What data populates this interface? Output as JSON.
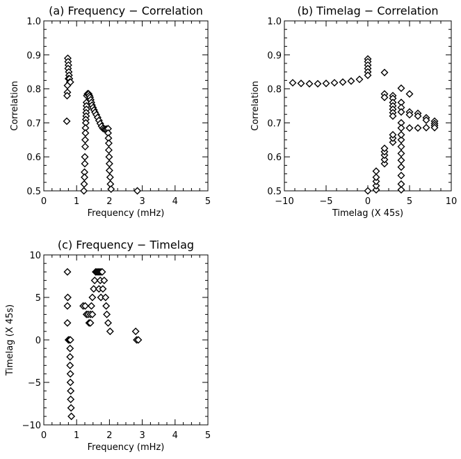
{
  "chart_data": [
    {
      "type": "scatter",
      "title": "(a) Frequency − Correlation",
      "xlabel": "Frequency (mHz)",
      "ylabel": "Correlation",
      "xlim": [
        0,
        5
      ],
      "ylim": [
        0.5,
        1.0
      ],
      "xticks": [
        0,
        1,
        2,
        3,
        4,
        5
      ],
      "xtick_labels": [
        "0",
        "1",
        "2",
        "3",
        "4",
        "5"
      ],
      "yticks": [
        0.5,
        0.6,
        0.7,
        0.8,
        0.9,
        1.0
      ],
      "ytick_labels": [
        "0.5",
        "0.6",
        "0.7",
        "0.8",
        "0.9",
        "1.0"
      ],
      "marker": "diamond",
      "grid": false,
      "points": [
        {
          "x": 0.73,
          "y": 0.89
        },
        {
          "x": 0.74,
          "y": 0.88
        },
        {
          "x": 0.75,
          "y": 0.87
        },
        {
          "x": 0.74,
          "y": 0.86
        },
        {
          "x": 0.76,
          "y": 0.85
        },
        {
          "x": 0.77,
          "y": 0.84
        },
        {
          "x": 0.75,
          "y": 0.83
        },
        {
          "x": 0.78,
          "y": 0.83
        },
        {
          "x": 0.79,
          "y": 0.82
        },
        {
          "x": 0.81,
          "y": 0.82
        },
        {
          "x": 0.72,
          "y": 0.81
        },
        {
          "x": 0.72,
          "y": 0.79
        },
        {
          "x": 0.71,
          "y": 0.78
        },
        {
          "x": 0.7,
          "y": 0.705
        },
        {
          "x": 1.3,
          "y": 0.76
        },
        {
          "x": 1.31,
          "y": 0.78
        },
        {
          "x": 1.33,
          "y": 0.785
        },
        {
          "x": 1.35,
          "y": 0.786
        },
        {
          "x": 1.37,
          "y": 0.785
        },
        {
          "x": 1.39,
          "y": 0.78
        },
        {
          "x": 1.41,
          "y": 0.775
        },
        {
          "x": 1.43,
          "y": 0.768
        },
        {
          "x": 1.45,
          "y": 0.76
        },
        {
          "x": 1.47,
          "y": 0.752
        },
        {
          "x": 1.5,
          "y": 0.745
        },
        {
          "x": 1.53,
          "y": 0.738
        },
        {
          "x": 1.56,
          "y": 0.731
        },
        {
          "x": 1.6,
          "y": 0.724
        },
        {
          "x": 1.64,
          "y": 0.716
        },
        {
          "x": 1.68,
          "y": 0.707
        },
        {
          "x": 1.72,
          "y": 0.698
        },
        {
          "x": 1.76,
          "y": 0.69
        },
        {
          "x": 1.8,
          "y": 0.684
        },
        {
          "x": 1.84,
          "y": 0.682
        },
        {
          "x": 1.88,
          "y": 0.681
        },
        {
          "x": 1.92,
          "y": 0.682
        },
        {
          "x": 1.96,
          "y": 0.683
        },
        {
          "x": 1.3,
          "y": 0.75
        },
        {
          "x": 1.3,
          "y": 0.74
        },
        {
          "x": 1.29,
          "y": 0.73
        },
        {
          "x": 1.29,
          "y": 0.72
        },
        {
          "x": 1.28,
          "y": 0.71
        },
        {
          "x": 1.28,
          "y": 0.7
        },
        {
          "x": 1.27,
          "y": 0.685
        },
        {
          "x": 1.27,
          "y": 0.67
        },
        {
          "x": 1.26,
          "y": 0.65
        },
        {
          "x": 1.26,
          "y": 0.63
        },
        {
          "x": 1.25,
          "y": 0.6
        },
        {
          "x": 1.25,
          "y": 0.58
        },
        {
          "x": 1.24,
          "y": 0.555
        },
        {
          "x": 1.24,
          "y": 0.54
        },
        {
          "x": 1.23,
          "y": 0.52
        },
        {
          "x": 1.22,
          "y": 0.5
        },
        {
          "x": 1.96,
          "y": 0.67
        },
        {
          "x": 1.97,
          "y": 0.655
        },
        {
          "x": 1.98,
          "y": 0.64
        },
        {
          "x": 1.98,
          "y": 0.62
        },
        {
          "x": 1.99,
          "y": 0.6
        },
        {
          "x": 2.0,
          "y": 0.58
        },
        {
          "x": 2.0,
          "y": 0.56
        },
        {
          "x": 2.02,
          "y": 0.54
        },
        {
          "x": 2.03,
          "y": 0.52
        },
        {
          "x": 2.05,
          "y": 0.505
        },
        {
          "x": 2.85,
          "y": 0.5
        }
      ]
    },
    {
      "type": "scatter",
      "title": "(b) Timelag − Correlation",
      "xlabel": "Timelag (X 45s)",
      "ylabel": "Correlation",
      "xlim": [
        -10,
        10
      ],
      "ylim": [
        0.5,
        1.0
      ],
      "xticks": [
        -10,
        -5,
        0,
        5,
        10
      ],
      "xtick_labels": [
        "−10",
        "−5",
        "0",
        "5",
        "10"
      ],
      "yticks": [
        0.5,
        0.6,
        0.7,
        0.8,
        0.9,
        1.0
      ],
      "ytick_labels": [
        "0.5",
        "0.6",
        "0.7",
        "0.8",
        "0.9",
        "1.0"
      ],
      "marker": "diamond",
      "grid": false,
      "points": [
        {
          "x": -9,
          "y": 0.818
        },
        {
          "x": -8,
          "y": 0.816
        },
        {
          "x": -7,
          "y": 0.815
        },
        {
          "x": -6,
          "y": 0.815
        },
        {
          "x": -5,
          "y": 0.816
        },
        {
          "x": -4,
          "y": 0.818
        },
        {
          "x": -3,
          "y": 0.82
        },
        {
          "x": -2,
          "y": 0.823
        },
        {
          "x": -1,
          "y": 0.828
        },
        {
          "x": 0,
          "y": 0.888
        },
        {
          "x": 0,
          "y": 0.88
        },
        {
          "x": 0,
          "y": 0.87
        },
        {
          "x": 0,
          "y": 0.86
        },
        {
          "x": 0,
          "y": 0.85
        },
        {
          "x": 0,
          "y": 0.84
        },
        {
          "x": 2,
          "y": 0.848
        },
        {
          "x": 2,
          "y": 0.785
        },
        {
          "x": 2,
          "y": 0.775
        },
        {
          "x": 3,
          "y": 0.78
        },
        {
          "x": 3,
          "y": 0.772
        },
        {
          "x": 3,
          "y": 0.76
        },
        {
          "x": 3,
          "y": 0.75
        },
        {
          "x": 3,
          "y": 0.74
        },
        {
          "x": 3,
          "y": 0.73
        },
        {
          "x": 3,
          "y": 0.72
        },
        {
          "x": 4,
          "y": 0.802
        },
        {
          "x": 4,
          "y": 0.76
        },
        {
          "x": 4,
          "y": 0.745
        },
        {
          "x": 4,
          "y": 0.732
        },
        {
          "x": 5,
          "y": 0.785
        },
        {
          "x": 5,
          "y": 0.732
        },
        {
          "x": 5,
          "y": 0.724
        },
        {
          "x": 6,
          "y": 0.728
        },
        {
          "x": 6,
          "y": 0.72
        },
        {
          "x": 7,
          "y": 0.715
        },
        {
          "x": 7,
          "y": 0.708
        },
        {
          "x": 8,
          "y": 0.705
        },
        {
          "x": 8,
          "y": 0.698
        },
        {
          "x": 8,
          "y": 0.692
        },
        {
          "x": 8,
          "y": 0.686
        },
        {
          "x": 4,
          "y": 0.7
        },
        {
          "x": 4,
          "y": 0.685
        },
        {
          "x": 5,
          "y": 0.685
        },
        {
          "x": 6,
          "y": 0.685
        },
        {
          "x": 7,
          "y": 0.686
        },
        {
          "x": 0,
          "y": 0.5
        },
        {
          "x": 1,
          "y": 0.503
        },
        {
          "x": 1,
          "y": 0.515
        },
        {
          "x": 1,
          "y": 0.528
        },
        {
          "x": 1,
          "y": 0.54
        },
        {
          "x": 1,
          "y": 0.558
        },
        {
          "x": 2,
          "y": 0.58
        },
        {
          "x": 2,
          "y": 0.592
        },
        {
          "x": 2,
          "y": 0.605
        },
        {
          "x": 2,
          "y": 0.615
        },
        {
          "x": 2,
          "y": 0.625
        },
        {
          "x": 3,
          "y": 0.643
        },
        {
          "x": 3,
          "y": 0.655
        },
        {
          "x": 3,
          "y": 0.665
        },
        {
          "x": 4,
          "y": 0.503
        },
        {
          "x": 4,
          "y": 0.52
        },
        {
          "x": 4,
          "y": 0.545
        },
        {
          "x": 4,
          "y": 0.57
        },
        {
          "x": 4,
          "y": 0.59
        },
        {
          "x": 4,
          "y": 0.61
        },
        {
          "x": 4,
          "y": 0.63
        },
        {
          "x": 4,
          "y": 0.65
        },
        {
          "x": 4,
          "y": 0.665
        }
      ]
    },
    {
      "type": "scatter",
      "title": "(c) Frequency − Timelag",
      "xlabel": "Frequency (mHz)",
      "ylabel": "Timelag (X 45s)",
      "xlim": [
        0,
        5
      ],
      "ylim": [
        -10,
        10
      ],
      "xticks": [
        0,
        1,
        2,
        3,
        4,
        5
      ],
      "xtick_labels": [
        "0",
        "1",
        "2",
        "3",
        "4",
        "5"
      ],
      "yticks": [
        -10,
        -5,
        0,
        5,
        10
      ],
      "ytick_labels": [
        "−10",
        "−5",
        "0",
        "5",
        "10"
      ],
      "marker": "diamond",
      "grid": false,
      "points": [
        {
          "x": 0.72,
          "y": 8
        },
        {
          "x": 0.73,
          "y": 5
        },
        {
          "x": 0.72,
          "y": 4
        },
        {
          "x": 0.72,
          "y": 2
        },
        {
          "x": 0.75,
          "y": 0
        },
        {
          "x": 0.78,
          "y": 0
        },
        {
          "x": 0.81,
          "y": 0
        },
        {
          "x": 0.8,
          "y": -1
        },
        {
          "x": 0.8,
          "y": -2
        },
        {
          "x": 0.8,
          "y": -3
        },
        {
          "x": 0.81,
          "y": -4
        },
        {
          "x": 0.81,
          "y": -5
        },
        {
          "x": 0.82,
          "y": -6
        },
        {
          "x": 0.82,
          "y": -7
        },
        {
          "x": 0.83,
          "y": -8
        },
        {
          "x": 0.84,
          "y": -9
        },
        {
          "x": 1.2,
          "y": 4
        },
        {
          "x": 1.26,
          "y": 4
        },
        {
          "x": 1.3,
          "y": 3
        },
        {
          "x": 1.35,
          "y": 3
        },
        {
          "x": 1.38,
          "y": 2
        },
        {
          "x": 1.42,
          "y": 3
        },
        {
          "x": 1.42,
          "y": 2
        },
        {
          "x": 1.45,
          "y": 4
        },
        {
          "x": 1.48,
          "y": 3
        },
        {
          "x": 1.48,
          "y": 5
        },
        {
          "x": 1.52,
          "y": 6
        },
        {
          "x": 1.55,
          "y": 7
        },
        {
          "x": 1.58,
          "y": 8
        },
        {
          "x": 1.62,
          "y": 8
        },
        {
          "x": 1.66,
          "y": 8
        },
        {
          "x": 1.7,
          "y": 8
        },
        {
          "x": 1.74,
          "y": 8
        },
        {
          "x": 1.78,
          "y": 8
        },
        {
          "x": 1.72,
          "y": 7
        },
        {
          "x": 1.68,
          "y": 6
        },
        {
          "x": 1.74,
          "y": 5
        },
        {
          "x": 1.8,
          "y": 6
        },
        {
          "x": 1.84,
          "y": 7
        },
        {
          "x": 1.88,
          "y": 5
        },
        {
          "x": 1.9,
          "y": 4
        },
        {
          "x": 1.92,
          "y": 3
        },
        {
          "x": 1.96,
          "y": 2
        },
        {
          "x": 2.02,
          "y": 1
        },
        {
          "x": 2.8,
          "y": 1
        },
        {
          "x": 2.83,
          "y": 0
        },
        {
          "x": 2.88,
          "y": 0
        }
      ]
    }
  ]
}
